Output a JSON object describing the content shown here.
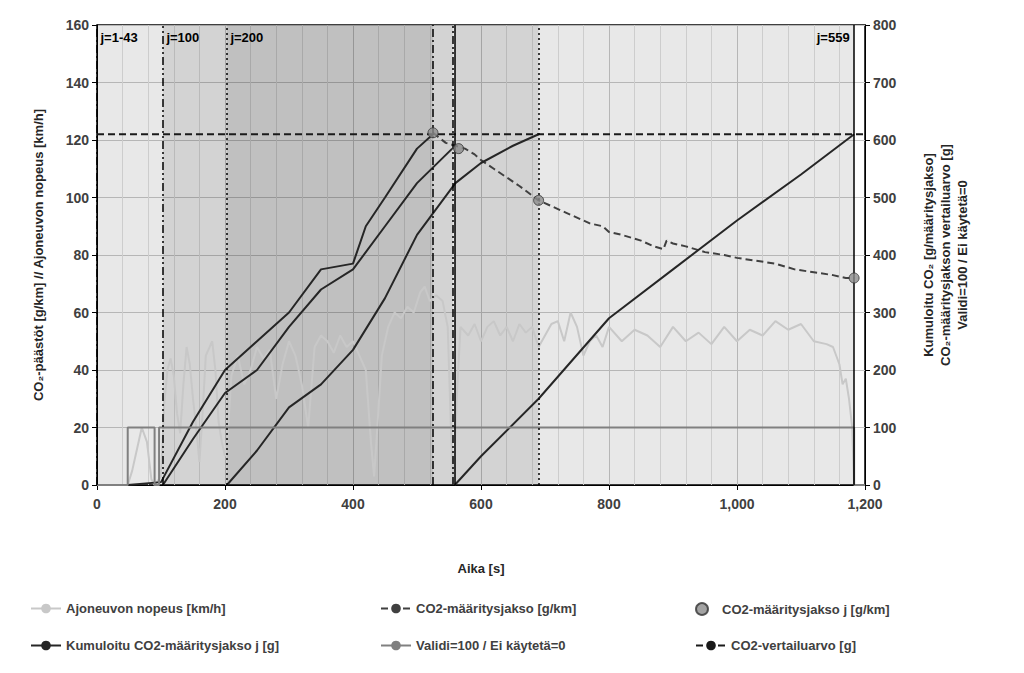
{
  "chart_data": {
    "type": "line",
    "xlabel": "Aika [s]",
    "ylabel": "CO₂-päästöt [g/km] // Ajoneuvon nopeus [km/h]",
    "y2label": "Kumuloitu CO₂ [g/määritysjakso]\nCO₂-määritysjakson vertailuarvo [g]\nValidi=100 / Ei käytetä=0",
    "xlim": [
      0,
      1200
    ],
    "xticks": [
      0,
      200,
      400,
      600,
      800,
      1000,
      1200
    ],
    "ylim": [
      0,
      160
    ],
    "yticks": [
      0,
      20,
      40,
      60,
      80,
      100,
      120,
      140,
      160
    ],
    "y2lim": [
      0,
      800
    ],
    "y2ticks": [
      0,
      100,
      200,
      300,
      400,
      500,
      600,
      700,
      800
    ],
    "grid": true,
    "windows": [
      {
        "label": "j=1-43",
        "start": 0,
        "end": 525,
        "line_style": "dashdot"
      },
      {
        "label": "j=100",
        "start": 103,
        "end": 556,
        "line_style": "dashdotdot"
      },
      {
        "label": "j=200",
        "start": 203,
        "end": 690,
        "line_style": "dotted"
      },
      {
        "label": "j=559",
        "start": 559,
        "end": 1183,
        "line_style": "solid"
      }
    ],
    "series": [
      {
        "name": "Ajoneuvon nopeus [km/h]",
        "type": "line",
        "color": "#c8c8c8",
        "line_style": "solid",
        "x": [
          0,
          48,
          55,
          62,
          70,
          78,
          85,
          90,
          100,
          105,
          110,
          115,
          120,
          125,
          130,
          135,
          140,
          145,
          150,
          155,
          160,
          165,
          170,
          180,
          185,
          190,
          195,
          200,
          205,
          210,
          220,
          230,
          240,
          250,
          260,
          270,
          280,
          290,
          300,
          310,
          320,
          330,
          340,
          350,
          360,
          370,
          380,
          390,
          400,
          410,
          420,
          428,
          433,
          438,
          445,
          455,
          465,
          475,
          485,
          495,
          505,
          512,
          520,
          530,
          540,
          548,
          553,
          557,
          562,
          568,
          580,
          590,
          600,
          610,
          620,
          630,
          640,
          650,
          660,
          670,
          680,
          690,
          700,
          710,
          720,
          730,
          740,
          750,
          760,
          770,
          780,
          790,
          800,
          820,
          840,
          860,
          880,
          900,
          920,
          940,
          960,
          980,
          1000,
          1020,
          1040,
          1060,
          1080,
          1100,
          1120,
          1140,
          1150,
          1160,
          1165,
          1170,
          1175,
          1180,
          1183
        ],
        "values": [
          0,
          0,
          5,
          12,
          20,
          15,
          2,
          0,
          3,
          28,
          40,
          44,
          38,
          25,
          18,
          35,
          48,
          42,
          30,
          20,
          8,
          25,
          45,
          50,
          40,
          22,
          15,
          10,
          20,
          38,
          45,
          35,
          40,
          48,
          44,
          47,
          30,
          42,
          50,
          45,
          35,
          20,
          48,
          52,
          50,
          46,
          52,
          48,
          50,
          45,
          40,
          15,
          3,
          20,
          45,
          55,
          60,
          58,
          62,
          60,
          67,
          69,
          64,
          66,
          64,
          55,
          20,
          0,
          30,
          55,
          52,
          56,
          50,
          55,
          57,
          52,
          55,
          50,
          56,
          53,
          55,
          48,
          52,
          56,
          57,
          50,
          60,
          55,
          45,
          50,
          52,
          48,
          55,
          50,
          54,
          52,
          48,
          55,
          50,
          53,
          49,
          55,
          50,
          54,
          52,
          57,
          54,
          56,
          50,
          49,
          48,
          42,
          35,
          37,
          30,
          20,
          0
        ]
      },
      {
        "name": "CO2-määritysjakso [g/km]",
        "type": "line",
        "color": "#404040",
        "line_style": "dashed",
        "x": [
          525,
          545,
          560,
          575,
          590,
          600,
          620,
          640,
          660,
          690,
          710,
          730,
          750,
          770,
          790,
          800,
          820,
          850,
          870,
          885,
          890,
          900,
          920,
          950,
          980,
          1000,
          1030,
          1060,
          1090,
          1120,
          1150,
          1170,
          1183
        ],
        "values": [
          122.5,
          119,
          118,
          117,
          115,
          113,
          110,
          107,
          104,
          99,
          97,
          95,
          93,
          91,
          90,
          88,
          87,
          85,
          83,
          82,
          85,
          84,
          83,
          81,
          80,
          79,
          78,
          77,
          75,
          74,
          73,
          72,
          72
        ]
      },
      {
        "name": "CO2-määritysjakso j [g/km]",
        "type": "scatter",
        "color": "#8c8c8c",
        "marker": "circle",
        "x": [
          525,
          565,
          690,
          1183
        ],
        "values": [
          122.5,
          117,
          99,
          72
        ]
      },
      {
        "name": "Kumuloitu CO2-määritysjakso j [g]",
        "type": "line",
        "color": "#262626",
        "line_style": "solid",
        "axis": "y2",
        "x": [
          48,
          100,
          150,
          200,
          250,
          300,
          350,
          400,
          420,
          450,
          500,
          525
        ],
        "values": [
          0,
          5,
          110,
          200,
          250,
          300,
          375,
          385,
          450,
          500,
          585,
          610
        ]
      },
      {
        "name": "Kumuloitu CO2-määritysjakso j [g]",
        "type": "line",
        "color": "#262626",
        "line_style": "solid",
        "axis": "y2",
        "x": [
          103,
          150,
          200,
          250,
          300,
          350,
          400,
          450,
          500,
          555
        ],
        "values": [
          0,
          80,
          160,
          200,
          275,
          340,
          375,
          450,
          525,
          585
        ]
      },
      {
        "name": "Kumuloitu CO2-määritysjakso j [g]",
        "type": "line",
        "color": "#262626",
        "line_style": "solid",
        "axis": "y2",
        "x": [
          203,
          250,
          300,
          350,
          400,
          450,
          500,
          560,
          600,
          650,
          690
        ],
        "values": [
          0,
          60,
          135,
          175,
          235,
          325,
          435,
          525,
          560,
          590,
          610
        ]
      },
      {
        "name": "Kumuloitu CO2-määritysjakso j [g]",
        "type": "line",
        "color": "#262626",
        "line_style": "solid",
        "axis": "y2",
        "x": [
          559,
          600,
          690,
          800,
          900,
          1000,
          1100,
          1183
        ],
        "values": [
          0,
          50,
          150,
          290,
          375,
          460,
          540,
          610
        ]
      },
      {
        "name": "Validi=100 / Ei käytetä=0",
        "type": "line",
        "color": "#808080",
        "line_style": "solid",
        "axis": "y2",
        "x": [
          0,
          48,
          48,
          90,
          90,
          97,
          97,
          1183,
          1183,
          1200
        ],
        "values": [
          0,
          0,
          100,
          100,
          0,
          0,
          100,
          100,
          0,
          0
        ]
      },
      {
        "name": "CO2-vertailuarvo [g]",
        "type": "line",
        "color": "#1a1a1a",
        "line_style": "dashed",
        "axis": "y2",
        "x": [
          0,
          1200
        ],
        "values": [
          610,
          610
        ]
      }
    ]
  }
}
